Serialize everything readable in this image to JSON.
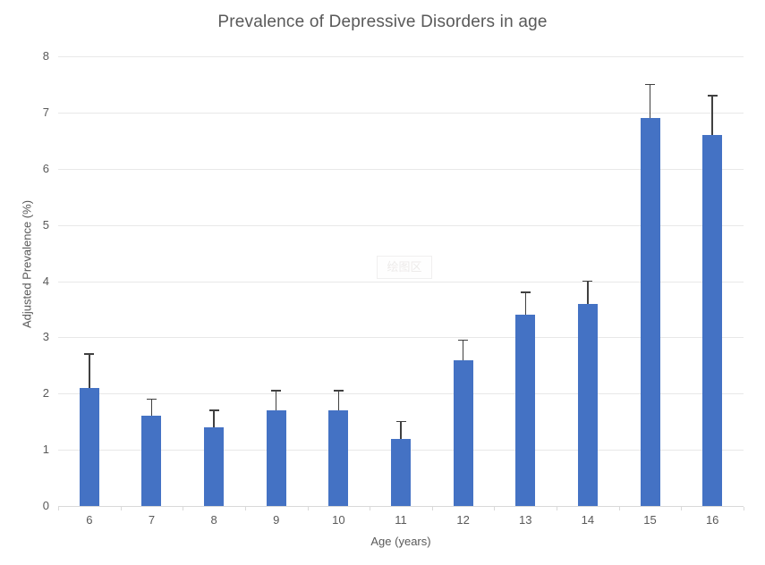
{
  "chart_data": {
    "type": "bar",
    "title": "Prevalence of Depressive Disorders in age",
    "xlabel": "Age (years)",
    "ylabel": "Adjusted Prevalence (%)",
    "categories": [
      "6",
      "7",
      "8",
      "9",
      "10",
      "11",
      "12",
      "13",
      "14",
      "15",
      "16"
    ],
    "values": [
      2.1,
      1.6,
      1.4,
      1.7,
      1.7,
      1.2,
      2.6,
      3.4,
      3.6,
      6.9,
      6.6
    ],
    "error_plus": [
      0.6,
      0.3,
      0.3,
      0.35,
      0.35,
      0.3,
      0.35,
      0.4,
      0.4,
      0.6,
      0.7
    ],
    "y_ticks": [
      0,
      1,
      2,
      3,
      4,
      5,
      6,
      7,
      8
    ],
    "ylim": [
      0,
      8
    ],
    "grid": true,
    "legend_position": "none"
  },
  "watermark": {
    "text": "绘图区"
  },
  "colors": {
    "bar": "#4472c4",
    "error_bar": "#404040",
    "gridline": "#e8e8e8",
    "axis_line": "#d9d9d9",
    "text": "#595959",
    "background": "#ffffff"
  }
}
